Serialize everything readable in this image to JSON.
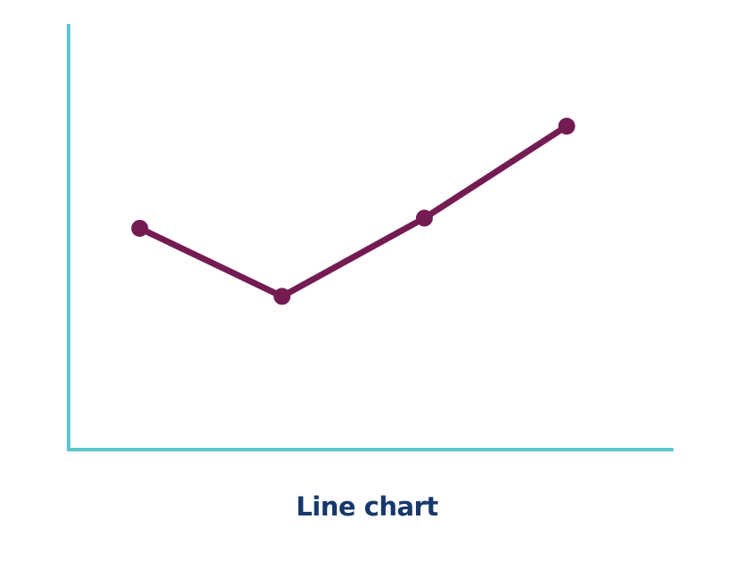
{
  "caption": "Line chart",
  "colors": {
    "axis": "#5bc6cc",
    "line": "#741b52",
    "caption": "#16386b"
  },
  "chart_data": {
    "type": "line",
    "title": "",
    "xlabel": "",
    "ylabel": "",
    "x": [
      1,
      2,
      3,
      4
    ],
    "values": [
      45,
      25,
      48,
      75
    ],
    "xlim": [
      0.5,
      4.75
    ],
    "ylim": [
      -20,
      105
    ],
    "grid": false,
    "legend": "none",
    "axis_ticks": false
  }
}
